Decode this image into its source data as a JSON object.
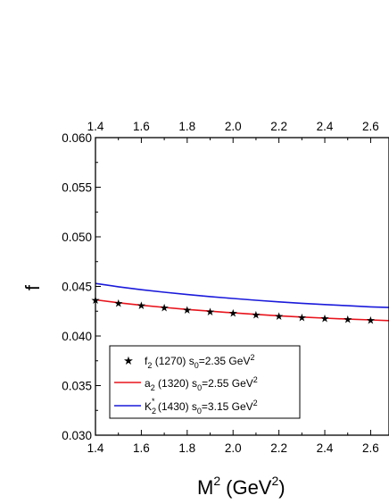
{
  "chart_data": {
    "type": "line",
    "xlabel": "M",
    "xlabel_sup": "2",
    "xlabel_unit": "(GeV",
    "xlabel_unit_sup": "2",
    "xlabel_unit_close": ")",
    "ylabel": "f",
    "xlim": [
      1.4,
      2.68
    ],
    "ylim": [
      0.03,
      0.06
    ],
    "x_ticks": [
      1.4,
      1.6,
      1.8,
      2.0,
      2.2,
      2.4,
      2.6
    ],
    "x_tick_labels": [
      "1.4",
      "1.6",
      "1.8",
      "2.0",
      "2.2",
      "2.4",
      "2.6"
    ],
    "y_ticks": [
      0.03,
      0.035,
      0.04,
      0.045,
      0.05,
      0.055,
      0.06
    ],
    "y_tick_labels": [
      "0.030",
      "0.035",
      "0.040",
      "0.045",
      "0.050",
      "0.055",
      "0.060"
    ],
    "grid": false,
    "legend_position": "bottom-left",
    "series": [
      {
        "style": "star-marker",
        "color": "#000000",
        "legend_name": "f",
        "legend_sub": "2",
        "legend_mid": " (1270) s",
        "legend_sub2": "0",
        "legend_tail": "=2.35 GeV",
        "legend_sup": "2",
        "x": [
          1.4,
          1.5,
          1.6,
          1.7,
          1.8,
          1.9,
          2.0,
          2.1,
          2.2,
          2.3,
          2.4,
          2.5,
          2.6
        ],
        "y": [
          0.04365,
          0.04335,
          0.0431,
          0.04288,
          0.04268,
          0.0425,
          0.04233,
          0.04218,
          0.04204,
          0.04191,
          0.0418,
          0.0417,
          0.04162
        ]
      },
      {
        "style": "line",
        "color": "#e8141c",
        "legend_name": "a",
        "legend_sub": "2",
        "legend_mid": " (1320) s",
        "legend_sub2": "0",
        "legend_tail": "=2.55 GeV",
        "legend_sup": "2",
        "x": [
          1.4,
          1.5,
          1.6,
          1.7,
          1.8,
          1.9,
          2.0,
          2.1,
          2.2,
          2.3,
          2.4,
          2.5,
          2.6,
          2.68
        ],
        "y": [
          0.04365,
          0.04335,
          0.0431,
          0.04288,
          0.04268,
          0.0425,
          0.04233,
          0.04218,
          0.04204,
          0.04191,
          0.0418,
          0.0417,
          0.04162,
          0.04155
        ]
      },
      {
        "style": "line",
        "color": "#1a1adb",
        "legend_name": "K",
        "legend_sub": "2",
        "legend_star": "*",
        "legend_mid": " (1430) s",
        "legend_sub2": "0",
        "legend_tail": "=3.15 GeV",
        "legend_sup": "2",
        "x": [
          1.4,
          1.5,
          1.6,
          1.7,
          1.8,
          1.9,
          2.0,
          2.1,
          2.2,
          2.3,
          2.4,
          2.5,
          2.6,
          2.68
        ],
        "y": [
          0.0453,
          0.04496,
          0.04467,
          0.04441,
          0.04418,
          0.04397,
          0.04378,
          0.0436,
          0.04344,
          0.0433,
          0.04317,
          0.04305,
          0.04294,
          0.04287
        ]
      }
    ]
  }
}
